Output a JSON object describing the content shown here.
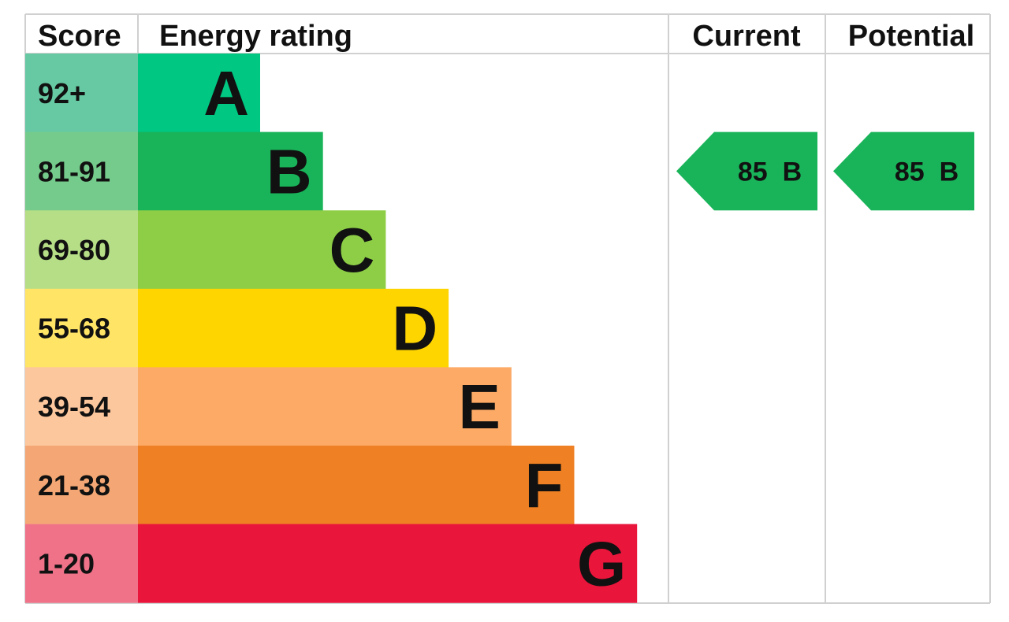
{
  "chart_data": {
    "type": "bar",
    "headers": {
      "score": "Score",
      "rating": "Energy rating",
      "current": "Current",
      "potential": "Potential"
    },
    "bands": [
      {
        "letter": "A",
        "range": "92+",
        "color": "#00c781",
        "light": "#66c9a3"
      },
      {
        "letter": "B",
        "range": "81-91",
        "color": "#19b459",
        "light": "#75cb8b"
      },
      {
        "letter": "C",
        "range": "69-80",
        "color": "#8dce46",
        "light": "#b5de86"
      },
      {
        "letter": "D",
        "range": "55-68",
        "color": "#ffd500",
        "light": "#ffe466"
      },
      {
        "letter": "E",
        "range": "39-54",
        "color": "#fcaa65",
        "light": "#fdc79d"
      },
      {
        "letter": "F",
        "range": "21-38",
        "color": "#ef8023",
        "light": "#f4a774"
      },
      {
        "letter": "G",
        "range": "1-20",
        "color": "#e9153b",
        "light": "#f07289"
      }
    ],
    "current": {
      "value": 85,
      "band": "B",
      "label": "85  B",
      "color": "#19b459"
    },
    "potential": {
      "value": 85,
      "band": "B",
      "label": "85  B",
      "color": "#19b459"
    }
  }
}
